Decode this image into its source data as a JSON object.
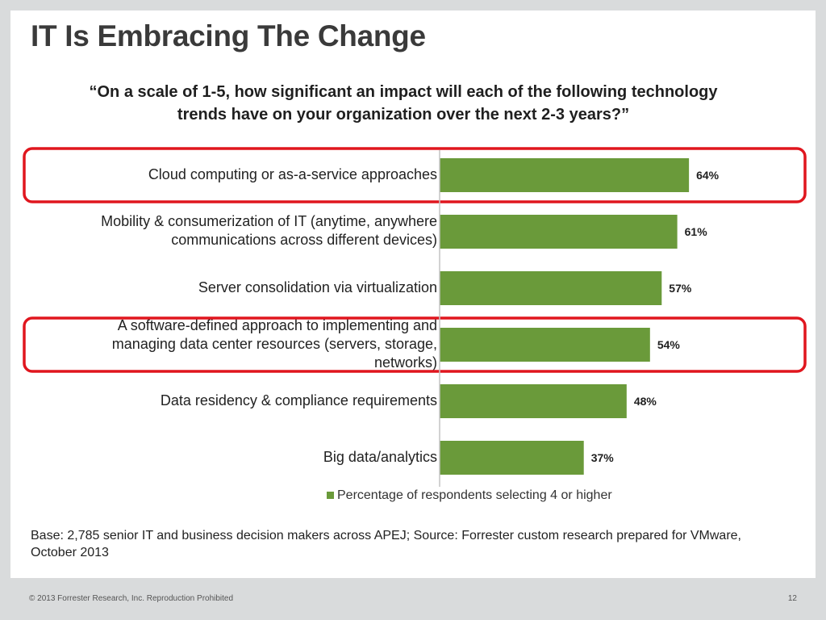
{
  "slide": {
    "title": "IT Is Embracing The Change",
    "question_lines": [
      "“On a scale of 1-5, how significant an impact will each of the following technology",
      "trends have on your organization over the next 2-3 years?”"
    ],
    "base_note": "Base: 2,785 senior IT and business decision makers across APEJ; Source: Forrester custom research prepared for VMware, October 2013",
    "footer_left": "© 2013 Forrester Research, Inc. Reproduction Prohibited",
    "page_number": "12"
  },
  "chart_data": {
    "type": "bar",
    "orientation": "horizontal",
    "categories": [
      [
        "Cloud computing or as-a-service approaches"
      ],
      [
        "Mobility & consumerization of IT (anytime, anywhere",
        "communications across different devices)"
      ],
      [
        "Server consolidation via virtualization"
      ],
      [
        "A software-defined approach to implementing and",
        "managing data center resources (servers, storage,",
        "networks)"
      ],
      [
        "Data residency & compliance requirements"
      ],
      [
        "Big data/analytics"
      ]
    ],
    "series": [
      {
        "name": "Percentage of respondents selecting 4 or higher",
        "values": [
          64,
          61,
          57,
          54,
          48,
          37
        ],
        "labels": [
          "64%",
          "61%",
          "57%",
          "54%",
          "48%",
          "37%"
        ],
        "color": "#6a9a3a"
      }
    ],
    "xlim": [
      0,
      100
    ],
    "highlighted": [
      0,
      3
    ],
    "highlight_color": "#e0161e",
    "legend_position": "bottom",
    "grid": false
  }
}
